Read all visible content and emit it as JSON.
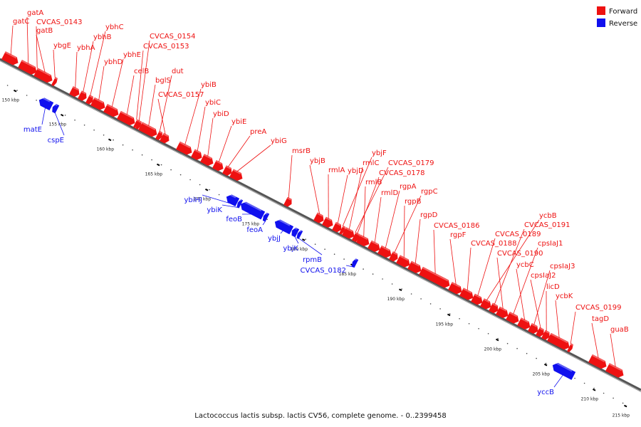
{
  "colors": {
    "forward": "#ee1111",
    "reverse": "#1010ee",
    "backbone": "#555555"
  },
  "legend": [
    {
      "label": "Forward",
      "strand": "forward"
    },
    {
      "label": "Reverse",
      "strand": "reverse"
    }
  ],
  "caption": "Lactococcus lactis subsp. lactis CV56, complete genome. - 0..2399458",
  "ticks": [
    "150 kbp",
    "155 kbp",
    "160 kbp",
    "165 kbp",
    "170 kbp",
    "175 kbp",
    "180 kbp",
    "185 kbp",
    "190 kbp",
    "195 kbp",
    "200 kbp",
    "205 kbp",
    "210 kbp",
    "215 kbp"
  ],
  "genes": [
    {
      "name": "gatC",
      "strand": "forward"
    },
    {
      "name": "gatA",
      "strand": "forward"
    },
    {
      "name": "CVCAS_0143",
      "strand": "forward"
    },
    {
      "name": "gatB",
      "strand": "forward"
    },
    {
      "name": "ybgE",
      "strand": "forward"
    },
    {
      "name": "ybhA",
      "strand": "forward"
    },
    {
      "name": "ybhB",
      "strand": "forward"
    },
    {
      "name": "ybhC",
      "strand": "forward"
    },
    {
      "name": "ybhD",
      "strand": "forward"
    },
    {
      "name": "ybhE",
      "strand": "forward"
    },
    {
      "name": "celB",
      "strand": "forward"
    },
    {
      "name": "CVCAS_0153",
      "strand": "forward"
    },
    {
      "name": "CVCAS_0154",
      "strand": "forward"
    },
    {
      "name": "bglS",
      "strand": "forward"
    },
    {
      "name": "dut",
      "strand": "forward"
    },
    {
      "name": "CVCAS_0157",
      "strand": "forward"
    },
    {
      "name": "ybiB",
      "strand": "forward"
    },
    {
      "name": "ybiC",
      "strand": "forward"
    },
    {
      "name": "ybiD",
      "strand": "forward"
    },
    {
      "name": "ybiE",
      "strand": "forward"
    },
    {
      "name": "preA",
      "strand": "forward"
    },
    {
      "name": "ybiG",
      "strand": "forward"
    },
    {
      "name": "msrB",
      "strand": "forward"
    },
    {
      "name": "ybjB",
      "strand": "forward"
    },
    {
      "name": "rmlA",
      "strand": "forward"
    },
    {
      "name": "ybjD",
      "strand": "forward"
    },
    {
      "name": "ybjF",
      "strand": "forward"
    },
    {
      "name": "rmlC",
      "strand": "forward"
    },
    {
      "name": "CVCAS_0179",
      "strand": "forward"
    },
    {
      "name": "CVCAS_0178",
      "strand": "forward"
    },
    {
      "name": "rmlB",
      "strand": "forward"
    },
    {
      "name": "rmlD",
      "strand": "forward"
    },
    {
      "name": "rgpA",
      "strand": "forward"
    },
    {
      "name": "rgpC",
      "strand": "forward"
    },
    {
      "name": "rgpB",
      "strand": "forward"
    },
    {
      "name": "rgpD",
      "strand": "forward"
    },
    {
      "name": "CVCAS_0186",
      "strand": "forward"
    },
    {
      "name": "rgpF",
      "strand": "forward"
    },
    {
      "name": "CVCAS_0188",
      "strand": "forward"
    },
    {
      "name": "CVCAS_0189",
      "strand": "forward"
    },
    {
      "name": "ycbB",
      "strand": "forward"
    },
    {
      "name": "CVCAS_0191",
      "strand": "forward"
    },
    {
      "name": "CVCAS_0190",
      "strand": "forward"
    },
    {
      "name": "cpsIaJ1",
      "strand": "forward"
    },
    {
      "name": "ycbC",
      "strand": "forward"
    },
    {
      "name": "cpsIaJ3",
      "strand": "forward"
    },
    {
      "name": "cpsIaJ2",
      "strand": "forward"
    },
    {
      "name": "licD",
      "strand": "forward"
    },
    {
      "name": "ycbK",
      "strand": "forward"
    },
    {
      "name": "CVCAS_0199",
      "strand": "forward"
    },
    {
      "name": "tagD",
      "strand": "forward"
    },
    {
      "name": "guaB",
      "strand": "forward"
    },
    {
      "name": "matE",
      "strand": "reverse"
    },
    {
      "name": "cspE",
      "strand": "reverse"
    },
    {
      "name": "ybiHJ",
      "strand": "reverse"
    },
    {
      "name": "ybiK",
      "strand": "reverse"
    },
    {
      "name": "feoB",
      "strand": "reverse"
    },
    {
      "name": "feoA",
      "strand": "reverse"
    },
    {
      "name": "ybjJ",
      "strand": "reverse"
    },
    {
      "name": "ybjK",
      "strand": "reverse"
    },
    {
      "name": "rpmB",
      "strand": "reverse"
    },
    {
      "name": "CVCAS_0182",
      "strand": "reverse"
    },
    {
      "name": "yccB",
      "strand": "reverse"
    }
  ]
}
